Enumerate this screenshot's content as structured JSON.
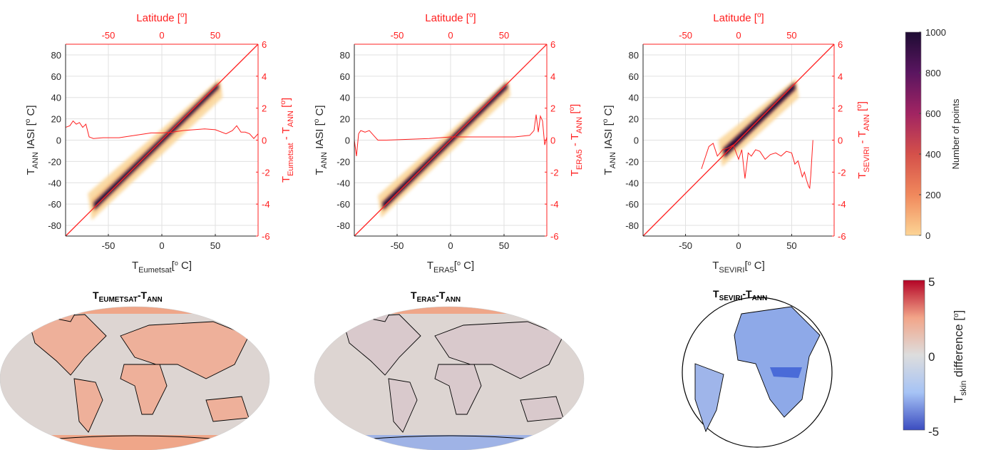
{
  "chart_data": [
    {
      "type": "heatmap",
      "xlabel_main": "T",
      "xlabel_sub": "Eumetsat",
      "xlabel_unit": "[o C]",
      "ylabel": "T ANN IASI [o C]",
      "ylabel_main": "T",
      "ylabel_sub": "ANN",
      "ylabel_rest": " IASI [",
      "ylabel_unit": "o",
      "ylabel_end": " C]",
      "top_label": "Latitude [o]",
      "right_label_main": "T",
      "right_label_sub1": "Eumetsat",
      "right_label_mid": " - T",
      "right_label_sub2": "ANN",
      "right_label_end": " [o]",
      "xlim": [
        -90,
        90
      ],
      "ylim": [
        -90,
        90
      ],
      "right_ylim": [
        -6,
        6
      ],
      "xticks": [
        -50,
        0,
        50
      ],
      "yticks": [
        -80,
        -60,
        -40,
        -20,
        0,
        20,
        40,
        60,
        80
      ],
      "right_ticks": [
        -6,
        -4,
        -2,
        0,
        2,
        4,
        6
      ],
      "top_ticks": [
        -50,
        0,
        50
      ],
      "density_range": [
        -62,
        52
      ],
      "density_spread": 12,
      "core_spread": 3,
      "diff_line": {
        "lat": [
          -90,
          -86,
          -83,
          -80,
          -77,
          -74,
          -71,
          -68,
          -64,
          -55,
          -40,
          -25,
          -10,
          0,
          10,
          20,
          30,
          40,
          50,
          60,
          66,
          70,
          74,
          78,
          82,
          86,
          90
        ],
        "diff": [
          0.8,
          0.9,
          1.2,
          1.0,
          1.1,
          0.8,
          1.0,
          0.2,
          0.1,
          0.15,
          0.15,
          0.3,
          0.45,
          0.45,
          0.5,
          0.6,
          0.65,
          0.7,
          0.65,
          0.4,
          0.6,
          0.9,
          0.5,
          0.5,
          0.4,
          0.1,
          0.4
        ]
      }
    },
    {
      "type": "heatmap",
      "xlabel_main": "T",
      "xlabel_sub": "ERA5",
      "xlabel_unit": "[o C]",
      "ylabel_main": "T",
      "ylabel_sub": "ANN",
      "ylabel_rest": " IASI [",
      "ylabel_unit": "o",
      "ylabel_end": " C]",
      "top_label": "Latitude [o]",
      "right_label_main": "T",
      "right_label_sub1": "ERA5",
      "right_label_mid": " - T",
      "right_label_sub2": "ANN",
      "right_label_end": " [o]",
      "xlim": [
        -90,
        90
      ],
      "ylim": [
        -90,
        90
      ],
      "right_ylim": [
        -6,
        6
      ],
      "xticks": [
        -50,
        0,
        50
      ],
      "yticks": [
        -80,
        -60,
        -40,
        -20,
        0,
        20,
        40,
        60,
        80
      ],
      "right_ticks": [
        -6,
        -4,
        -2,
        0,
        2,
        4,
        6
      ],
      "top_ticks": [
        -50,
        0,
        50
      ],
      "density_range": [
        -62,
        52
      ],
      "density_spread": 10,
      "core_spread": 3,
      "diff_line": {
        "lat": [
          -90,
          -88,
          -86,
          -84,
          -80,
          -76,
          -72,
          -68,
          -60,
          -40,
          -20,
          0,
          20,
          40,
          60,
          74,
          78,
          80,
          82,
          84,
          86,
          88,
          90
        ],
        "diff": [
          0.0,
          -1.0,
          0.4,
          0.6,
          0.5,
          0.6,
          0.3,
          0.0,
          0.0,
          0.05,
          0.1,
          0.2,
          0.2,
          0.2,
          0.2,
          0.3,
          0.6,
          1.6,
          0.5,
          1.5,
          1.2,
          -0.3,
          0.2
        ]
      }
    },
    {
      "type": "heatmap",
      "xlabel_main": "T",
      "xlabel_sub": "SEVIRI",
      "xlabel_unit": "[o C]",
      "ylabel_main": "T",
      "ylabel_sub": "ANN",
      "ylabel_rest": " IASI [",
      "ylabel_unit": "o",
      "ylabel_end": " C]",
      "top_label": "Latitude [o]",
      "right_label_main": "T",
      "right_label_sub1": "SEVIRI",
      "right_label_mid": " - T",
      "right_label_sub2": "ANN",
      "right_label_end": " [o]",
      "xlim": [
        -90,
        90
      ],
      "ylim": [
        -90,
        90
      ],
      "right_ylim": [
        -6,
        6
      ],
      "xticks": [
        -50,
        0,
        50
      ],
      "yticks": [
        -80,
        -60,
        -40,
        -20,
        0,
        20,
        40,
        60,
        80
      ],
      "right_ticks": [
        -6,
        -4,
        -2,
        0,
        2,
        4,
        6
      ],
      "top_ticks": [
        -50,
        0,
        50
      ],
      "density_range": [
        -12,
        52
      ],
      "density_spread": 12,
      "core_spread": 4,
      "diff_line": {
        "lat": [
          -35,
          -32,
          -28,
          -24,
          -20,
          -15,
          -10,
          -5,
          0,
          3,
          6,
          9,
          12,
          16,
          20,
          25,
          30,
          35,
          40,
          45,
          50,
          53,
          56,
          60,
          62,
          64,
          66,
          67,
          68,
          70
        ],
        "diff": [
          -1.8,
          -1.2,
          -0.4,
          -0.2,
          -1.0,
          -0.6,
          -0.5,
          -0.3,
          -1.2,
          -0.6,
          -2.4,
          -0.8,
          -1.0,
          -0.6,
          -0.7,
          -1.2,
          -0.9,
          -0.8,
          -1.0,
          -0.7,
          -0.8,
          -1.5,
          -1.3,
          -2.3,
          -2.0,
          -2.5,
          -2.9,
          -3.0,
          -2.2,
          0.0
        ]
      }
    }
  ],
  "colorbar_density": {
    "ticks": [
      "1000",
      "800",
      "600",
      "400",
      "200",
      "0"
    ],
    "label": "Number of points",
    "colors": [
      "#fcd494",
      "#f0885c",
      "#d4504a",
      "#a12462",
      "#5a1560",
      "#1e0c33"
    ]
  },
  "colorbar_diff": {
    "ticks": [
      "5",
      "0",
      "-5"
    ],
    "label_main": "T",
    "label_sub": "skin",
    "label_rest": " difference [",
    "label_unit": "o",
    "label_end": "]",
    "colors": [
      "#3b4cc0",
      "#a6c3f5",
      "#dddddd",
      "#f2a589",
      "#b40426"
    ]
  },
  "maps": [
    {
      "title_main": "T",
      "title_sub1": "EUMETSAT",
      "title_mid": "-T",
      "title_sub2": "ANN"
    },
    {
      "title_main": "T",
      "title_sub1": "ERA5",
      "title_mid": "-T",
      "title_sub2": "ANN"
    },
    {
      "title_main": "T",
      "title_sub1": "SEVIRI",
      "title_mid": "-T",
      "title_sub2": "ANN"
    }
  ],
  "colors": {
    "axis_red": "#ff2020",
    "grid": "#e0e0e0",
    "text": "#262626"
  }
}
